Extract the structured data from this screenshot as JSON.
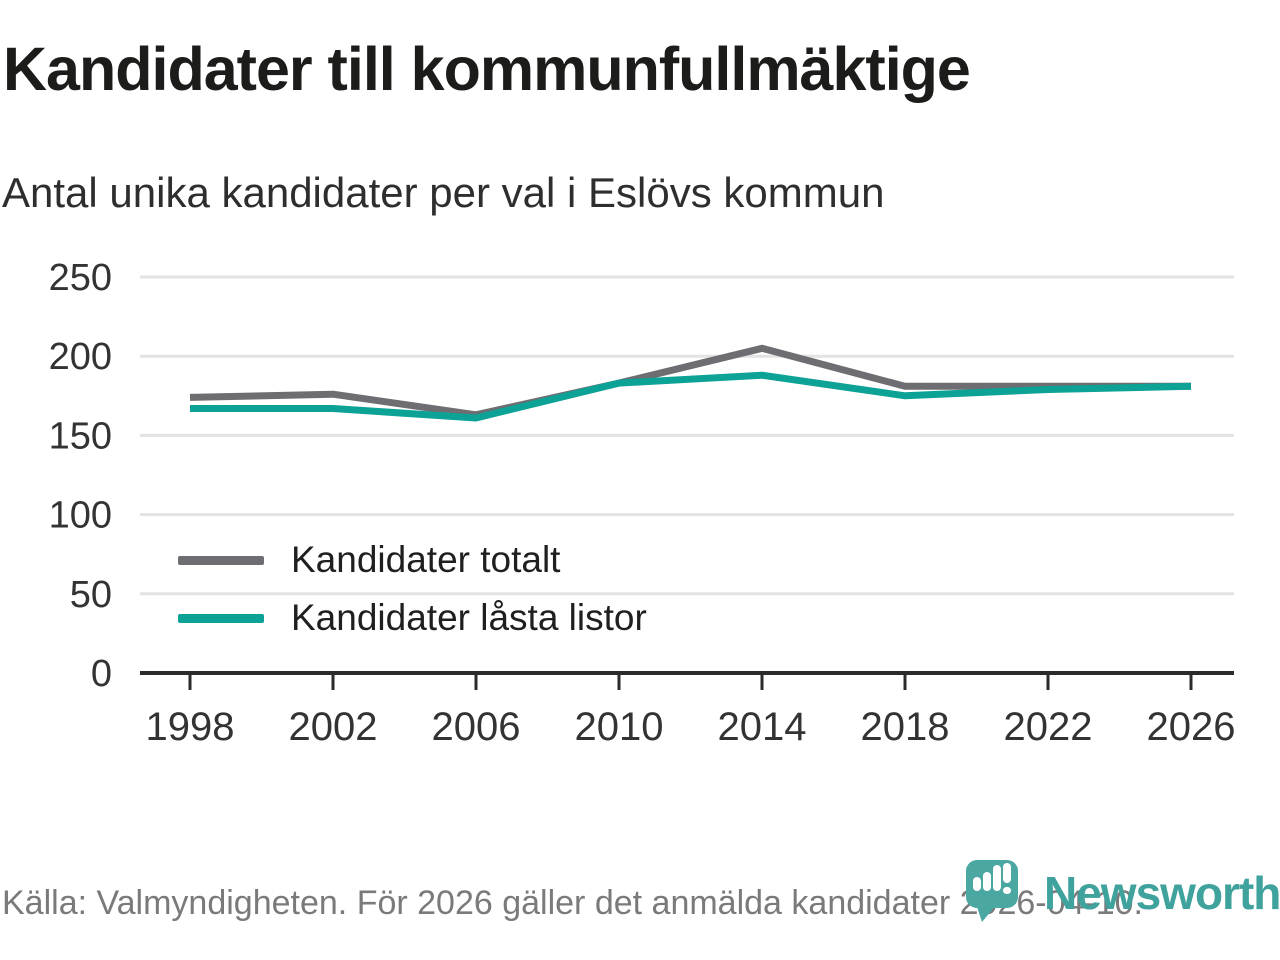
{
  "title": "Kandidater till kommunfullmäktige",
  "subtitle": "Antal unika kandidater per val i Eslövs kommun",
  "footer": {
    "source": "Källa: Valmyndigheten. För 2026 gäller det anmälda kandidater 2026-04-10.",
    "brand": "Newsworthy"
  },
  "colors": {
    "series_total": "#6d6d72",
    "series_locked": "#0ca295",
    "grid": "#e3e3e3",
    "axis": "#2b2b2b",
    "tick_label": "#333333",
    "title_text": "#1c1c1a",
    "footer_text": "#7a7a7a",
    "brand_teal": "#3fa29d",
    "logo_pin": "#4aa7a1"
  },
  "chart_data": {
    "type": "line",
    "title": "Kandidater till kommunfullmäktige",
    "subtitle": "Antal unika kandidater per val i Eslövs kommun",
    "x": [
      1998,
      2002,
      2006,
      2010,
      2014,
      2018,
      2022,
      2026
    ],
    "series": [
      {
        "name": "Kandidater totalt",
        "color": "#6d6d72",
        "values": [
          174,
          176,
          163,
          183,
          205,
          181,
          181,
          181
        ]
      },
      {
        "name": "Kandidater låsta listor",
        "color": "#0ca295",
        "values": [
          167,
          167,
          161,
          183,
          188,
          175,
          179,
          181
        ]
      }
    ],
    "xlabel": "",
    "ylabel": "",
    "ylim": [
      0,
      250
    ],
    "yticks": [
      0,
      50,
      100,
      150,
      200,
      250
    ],
    "grid": "horizontal",
    "legend_position": "inside-bottom-left"
  }
}
